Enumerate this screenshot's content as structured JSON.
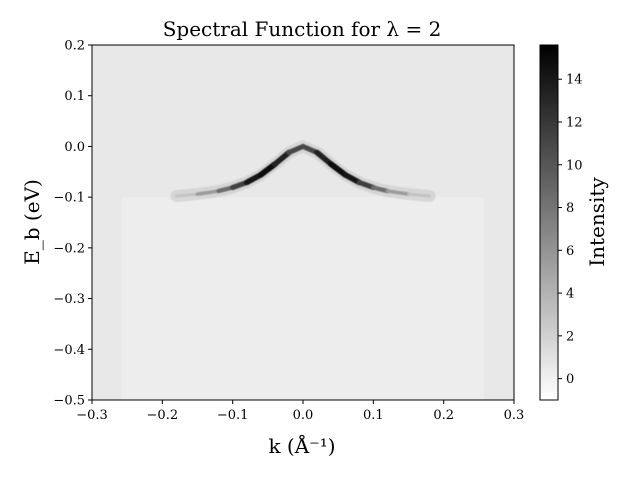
{
  "chart_data": {
    "type": "heatmap",
    "title": "Spectral Function for λ = 2",
    "xlabel": "k (Å⁻¹)",
    "ylabel": "E_b (eV)",
    "colorbar_label": "Intensity",
    "colormap": "gray_r",
    "xlim": [
      -0.3,
      0.3
    ],
    "ylim": [
      -0.5,
      0.2
    ],
    "clim": [
      -1,
      15.6
    ],
    "x_ticks": [
      {
        "value": -0.3,
        "label": "−0.3"
      },
      {
        "value": -0.2,
        "label": "−0.2"
      },
      {
        "value": -0.1,
        "label": "−0.1"
      },
      {
        "value": 0.0,
        "label": "0.0"
      },
      {
        "value": 0.1,
        "label": "0.1"
      },
      {
        "value": 0.2,
        "label": "0.2"
      },
      {
        "value": 0.3,
        "label": "0.3"
      }
    ],
    "y_ticks": [
      {
        "value": 0.2,
        "label": "0.2"
      },
      {
        "value": 0.1,
        "label": "0.1"
      },
      {
        "value": 0.0,
        "label": "0.0"
      },
      {
        "value": -0.1,
        "label": "−0.1"
      },
      {
        "value": -0.2,
        "label": "−0.2"
      },
      {
        "value": -0.3,
        "label": "−0.3"
      },
      {
        "value": -0.4,
        "label": "−0.4"
      },
      {
        "value": -0.5,
        "label": "−0.5"
      }
    ],
    "colorbar_ticks": [
      {
        "value": 0,
        "label": "0"
      },
      {
        "value": 2,
        "label": "2"
      },
      {
        "value": 4,
        "label": "4"
      },
      {
        "value": 6,
        "label": "6"
      },
      {
        "value": 8,
        "label": "8"
      },
      {
        "value": 10,
        "label": "10"
      },
      {
        "value": 12,
        "label": "12"
      },
      {
        "value": 14,
        "label": "14"
      }
    ],
    "band": {
      "k": [
        -0.18,
        -0.15,
        -0.12,
        -0.1,
        -0.08,
        -0.06,
        -0.04,
        -0.02,
        0.0,
        0.02,
        0.04,
        0.06,
        0.08,
        0.1,
        0.12,
        0.15,
        0.18
      ],
      "E": [
        -0.098,
        -0.094,
        -0.088,
        -0.081,
        -0.071,
        -0.056,
        -0.035,
        -0.012,
        0.0,
        -0.012,
        -0.035,
        -0.056,
        -0.071,
        -0.081,
        -0.088,
        -0.094,
        -0.098
      ],
      "peak_intensity": [
        2,
        4,
        7,
        10,
        13,
        15,
        15,
        12,
        10,
        12,
        15,
        15,
        13,
        10,
        7,
        4,
        2
      ]
    },
    "background_intensity": 0.5,
    "background_intensity_below_cutoff": 0.0,
    "cutoff_energy": -0.1
  }
}
